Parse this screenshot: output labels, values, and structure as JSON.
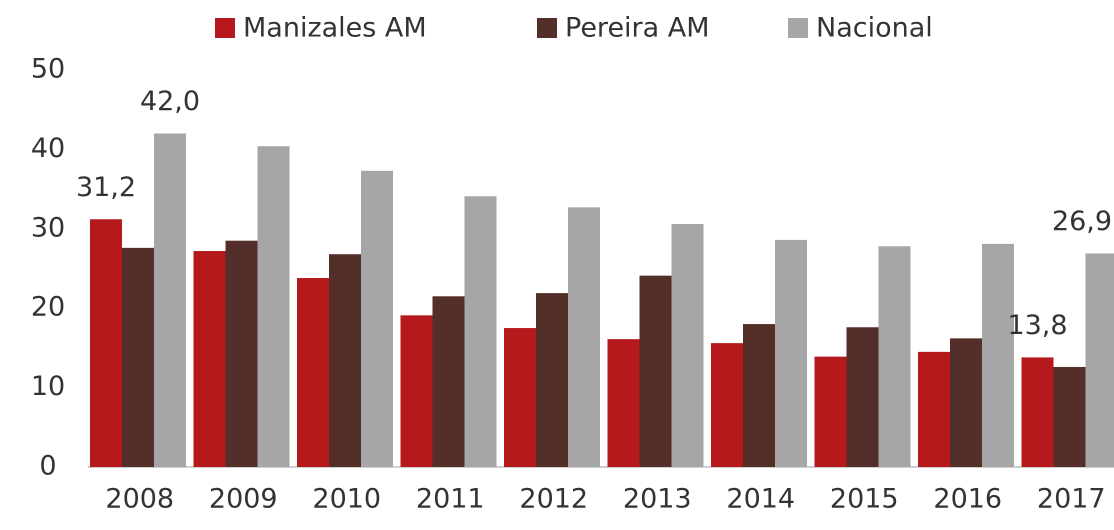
{
  "chart_data": {
    "type": "bar",
    "categories": [
      "2008",
      "2009",
      "2010",
      "2011",
      "2012",
      "2013",
      "2014",
      "2015",
      "2016",
      "2017"
    ],
    "series": [
      {
        "name": "Manizales AM",
        "color": "#b5191b",
        "values": [
          31.2,
          27.2,
          23.8,
          19.1,
          17.5,
          16.1,
          15.6,
          13.9,
          14.5,
          13.8
        ],
        "value_labels": [
          "31,2",
          null,
          null,
          null,
          null,
          null,
          null,
          null,
          null,
          "13,8"
        ]
      },
      {
        "name": "Pereira AM",
        "color": "#542f2a",
        "values": [
          27.6,
          28.5,
          26.8,
          21.5,
          21.9,
          24.1,
          18.0,
          17.6,
          16.2,
          12.6
        ]
      },
      {
        "name": "Nacional",
        "color": "#a6a6a6",
        "values": [
          42.0,
          40.4,
          37.3,
          34.1,
          32.7,
          30.6,
          28.6,
          27.8,
          28.1,
          26.9
        ],
        "value_labels": [
          "42,0",
          null,
          null,
          null,
          null,
          null,
          null,
          null,
          null,
          "26,9"
        ]
      }
    ],
    "ylim": [
      0,
      50
    ],
    "yticks": [
      0,
      10,
      20,
      30,
      40,
      50
    ],
    "grid": false,
    "legend": "top"
  }
}
